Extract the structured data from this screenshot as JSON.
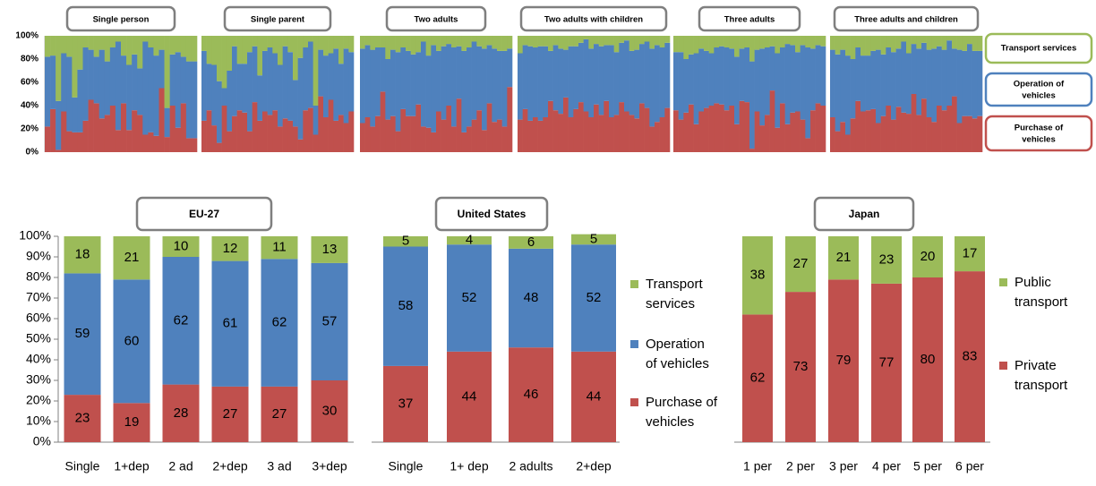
{
  "colors": {
    "purchase": "#c0504d",
    "operation": "#4f81bd",
    "transport": "#9bbb59",
    "panel_border": "#7f7f7f"
  },
  "chart_data": [
    {
      "type": "bar",
      "stacked": true,
      "percent": true,
      "y_ticks": [
        "0%",
        "20%",
        "40%",
        "60%",
        "80%",
        "100%"
      ],
      "ylim": [
        0,
        100
      ],
      "groups": [
        {
          "label": "Single person",
          "purchase": [
            22,
            37,
            2,
            35,
            18,
            17,
            17,
            27,
            45,
            42,
            29,
            32,
            40,
            19,
            42,
            19,
            36,
            32,
            15,
            17,
            14,
            55,
            13,
            40,
            21,
            42,
            12,
            12
          ],
          "operation": [
            60,
            46,
            42,
            50,
            64,
            30,
            54,
            63,
            43,
            40,
            59,
            46,
            50,
            76,
            41,
            56,
            48,
            40,
            80,
            73,
            69,
            33,
            25,
            44,
            65,
            40,
            66,
            66
          ]
        },
        {
          "label": "Single parent",
          "purchase": [
            27,
            36,
            23,
            8,
            40,
            18,
            31,
            36,
            34,
            18,
            43,
            27,
            35,
            32,
            36,
            22,
            29,
            27,
            22,
            11,
            36,
            38,
            15,
            48,
            30,
            45,
            27,
            32,
            25,
            35
          ],
          "operation": [
            60,
            40,
            52,
            53,
            15,
            52,
            60,
            40,
            42,
            68,
            48,
            39,
            52,
            58,
            49,
            53,
            62,
            59,
            40,
            70,
            54,
            57,
            25,
            40,
            53,
            40,
            62,
            44,
            64,
            51
          ]
        },
        {
          "label": "Two adults",
          "purchase": [
            25,
            30,
            22,
            31,
            52,
            28,
            31,
            18,
            37,
            31,
            31,
            41,
            22,
            21,
            17,
            35,
            28,
            40,
            22,
            46,
            17,
            22,
            28,
            36,
            19,
            42,
            26,
            28,
            22,
            56
          ],
          "operation": [
            64,
            62,
            66,
            59,
            38,
            52,
            57,
            68,
            53,
            56,
            53,
            45,
            73,
            62,
            75,
            52,
            63,
            53,
            68,
            45,
            70,
            68,
            67,
            55,
            70,
            50,
            63,
            59,
            65,
            33
          ]
        },
        {
          "label": "Two adults with children",
          "purchase": [
            28,
            37,
            27,
            30,
            27,
            30,
            44,
            36,
            33,
            47,
            30,
            37,
            43,
            35,
            30,
            41,
            32,
            44,
            30,
            32,
            43,
            35,
            32,
            29,
            42,
            38,
            22,
            26,
            30,
            38
          ],
          "operation": [
            57,
            55,
            64,
            60,
            64,
            61,
            43,
            56,
            56,
            41,
            61,
            54,
            51,
            62,
            59,
            52,
            59,
            48,
            62,
            54,
            51,
            61,
            55,
            59,
            51,
            57,
            67,
            66,
            60,
            56
          ]
        },
        {
          "label": "Three adults",
          "purchase": [
            36,
            28,
            34,
            41,
            24,
            35,
            38,
            40,
            42,
            41,
            36,
            40,
            24,
            44,
            43,
            3,
            35,
            23,
            32,
            53,
            21,
            42,
            24,
            34,
            35,
            28,
            12,
            36,
            42,
            40
          ],
          "operation": [
            50,
            58,
            46,
            43,
            61,
            54,
            49,
            45,
            48,
            50,
            54,
            49,
            58,
            45,
            47,
            75,
            53,
            66,
            58,
            38,
            64,
            48,
            69,
            58,
            51,
            64,
            78,
            53,
            50,
            51
          ]
        },
        {
          "label": "Three adults and children",
          "purchase": [
            30,
            18,
            26,
            15,
            29,
            44,
            35,
            36,
            37,
            25,
            31,
            40,
            28,
            39,
            34,
            33,
            50,
            32,
            46,
            30,
            26,
            40,
            36,
            40,
            48,
            25,
            31,
            31,
            29,
            31
          ],
          "operation": [
            58,
            66,
            62,
            68,
            51,
            46,
            48,
            47,
            50,
            63,
            53,
            50,
            58,
            50,
            61,
            52,
            43,
            57,
            48,
            58,
            63,
            51,
            52,
            56,
            41,
            63,
            56,
            62,
            58,
            56
          ]
        }
      ],
      "legend": [
        "Transport services",
        "Operation of vehicles",
        "Purchase of vehicles"
      ]
    },
    {
      "type": "bar",
      "stacked": true,
      "percent": true,
      "title": "EU-27",
      "categories": [
        "Single",
        "1+dep",
        "2 ad",
        "2+dep",
        "3 ad",
        "3+dep"
      ],
      "y_ticks": [
        "0%",
        "10%",
        "20%",
        "30%",
        "40%",
        "50%",
        "60%",
        "70%",
        "80%",
        "90%",
        "100%"
      ],
      "ylim": [
        0,
        100
      ],
      "series": [
        {
          "name": "Purchase of vehicles",
          "values": [
            23,
            19,
            28,
            27,
            27,
            30
          ]
        },
        {
          "name": "Operation of vehicles",
          "values": [
            59,
            60,
            62,
            61,
            62,
            57
          ]
        },
        {
          "name": "Transport services",
          "values": [
            18,
            21,
            10,
            12,
            11,
            13
          ]
        }
      ]
    },
    {
      "type": "bar",
      "stacked": true,
      "percent": true,
      "title": "United States",
      "categories": [
        "Single",
        "1+ dep",
        "2 adults",
        "2+dep"
      ],
      "series": [
        {
          "name": "Purchase of vehicles",
          "values": [
            37,
            44,
            46,
            44
          ]
        },
        {
          "name": "Operation of vehicles",
          "values": [
            58,
            52,
            48,
            52
          ]
        },
        {
          "name": "Transport services",
          "values": [
            5,
            4,
            6,
            5
          ]
        }
      ],
      "legend": [
        "Transport services",
        "Operation of vehicles",
        "Purchase of vehicles"
      ]
    },
    {
      "type": "bar",
      "stacked": true,
      "percent": true,
      "title": "Japan",
      "categories": [
        "1 per",
        "2 per",
        "3 per",
        "4 per",
        "5 per",
        "6 per"
      ],
      "series": [
        {
          "name": "Private transport",
          "values": [
            62,
            73,
            79,
            77,
            80,
            83
          ]
        },
        {
          "name": "Public transport",
          "values": [
            38,
            27,
            21,
            23,
            20,
            17
          ]
        }
      ],
      "legend": [
        "Public transport",
        "Private transport"
      ]
    }
  ]
}
